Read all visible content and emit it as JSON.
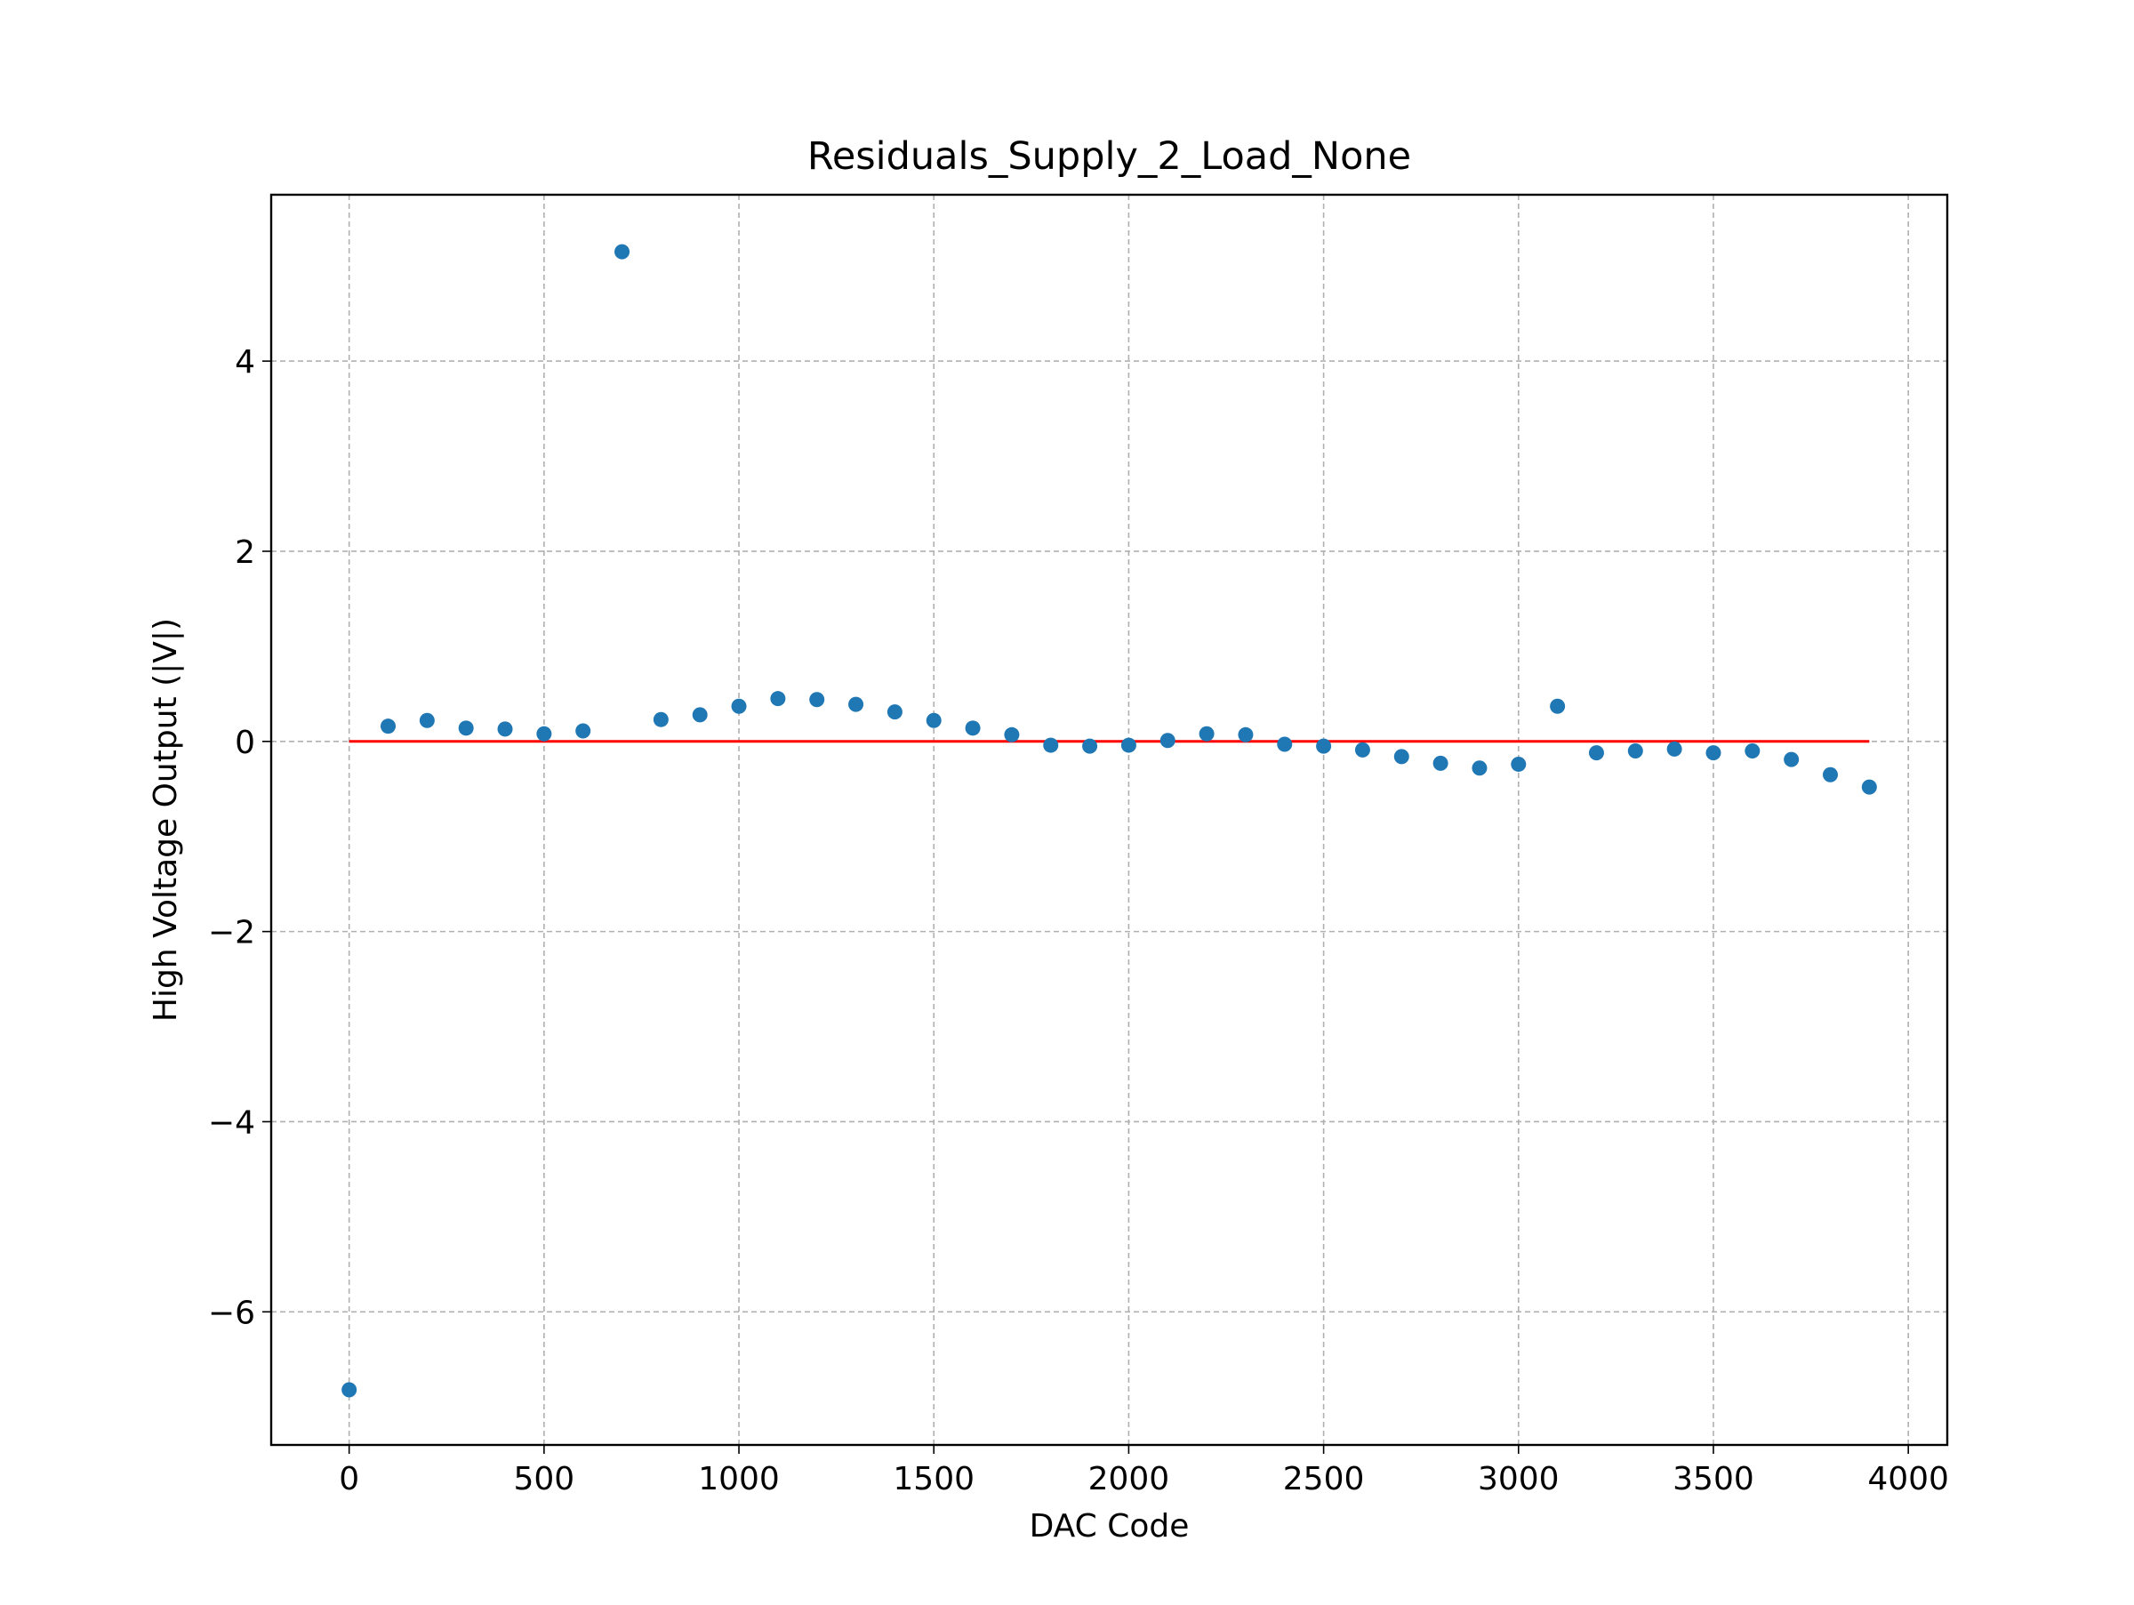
{
  "chart_data": {
    "type": "scatter",
    "title": "Residuals_Supply_2_Load_None",
    "xlabel": "DAC Code",
    "ylabel": "High Voltage Output (|V|)",
    "xlim": [
      -200,
      4100
    ],
    "ylim": [
      -7.4,
      5.75
    ],
    "xticks": [
      0,
      500,
      1000,
      1500,
      2000,
      2500,
      3000,
      3500,
      4000
    ],
    "xtick_labels": [
      "0",
      "500",
      "1000",
      "1500",
      "2000",
      "2500",
      "3000",
      "3500",
      "4000"
    ],
    "yticks": [
      -6,
      -4,
      -2,
      0,
      2,
      4
    ],
    "ytick_labels": [
      "−6",
      "−4",
      "−2",
      "0",
      "2",
      "4"
    ],
    "grid": true,
    "series": [
      {
        "type": "scatter",
        "color": "#1f77b4",
        "x": [
          0,
          100,
          200,
          300,
          400,
          500,
          600,
          700,
          800,
          900,
          1000,
          1100,
          1200,
          1300,
          1400,
          1500,
          1600,
          1700,
          1800,
          1900,
          2000,
          2100,
          2200,
          2300,
          2400,
          2500,
          2600,
          2700,
          2800,
          2900,
          3000,
          3100,
          3200,
          3300,
          3400,
          3500,
          3600,
          3700,
          3800,
          3900
        ],
        "y": [
          -6.82,
          0.16,
          0.22,
          0.14,
          0.13,
          0.08,
          0.11,
          5.15,
          0.23,
          0.28,
          0.37,
          0.45,
          0.44,
          0.39,
          0.31,
          0.22,
          0.14,
          0.07,
          -0.04,
          -0.05,
          -0.04,
          0.01,
          0.08,
          0.07,
          -0.03,
          -0.05,
          -0.09,
          -0.16,
          -0.23,
          -0.28,
          -0.24,
          0.37,
          -0.12,
          -0.1,
          -0.08,
          -0.12,
          -0.1,
          -0.19,
          -0.35,
          -0.48
        ]
      },
      {
        "type": "line",
        "color": "#ff0000",
        "x": [
          0,
          3900
        ],
        "y": [
          0,
          0
        ]
      }
    ]
  }
}
